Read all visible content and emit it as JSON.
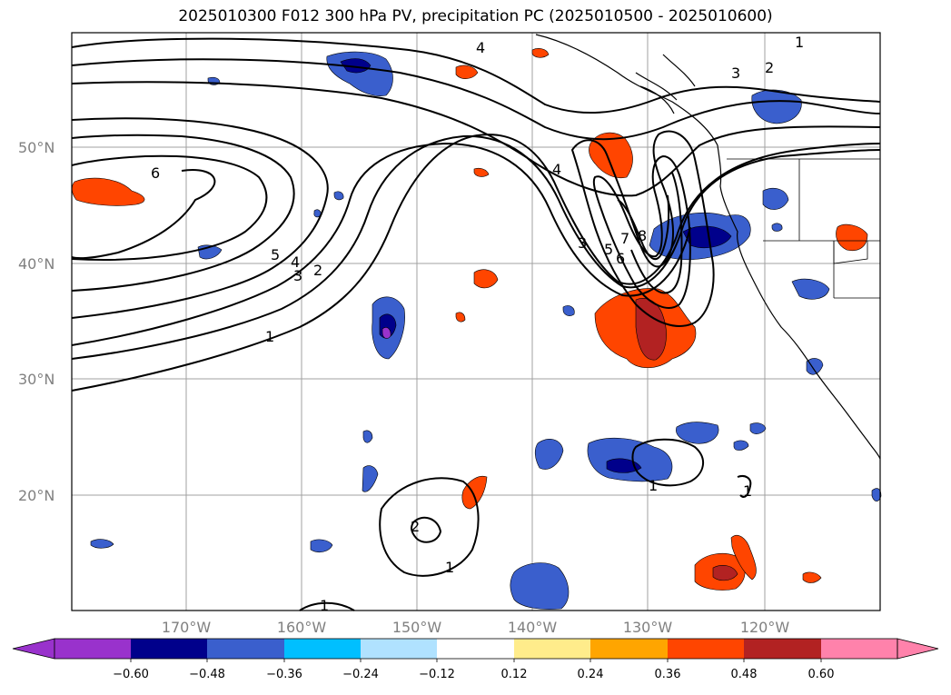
{
  "title": "2025010300 F012 300 hPa PV, precipitation PC (2025010500 - 2025010600)",
  "lat_labels": [
    "50°N",
    "40°N",
    "30°N",
    "20°N"
  ],
  "lon_labels": [
    "170°W",
    "160°W",
    "150°W",
    "140°W",
    "130°W",
    "120°W"
  ],
  "contour_labels": [
    "1",
    "2",
    "3",
    "4",
    "5",
    "6",
    "7",
    "8"
  ],
  "colorbar": {
    "ticks": [
      "−0.60",
      "−0.48",
      "−0.36",
      "−0.24",
      "−0.12",
      "0.12",
      "0.24",
      "0.36",
      "0.48",
      "0.60"
    ],
    "colors": [
      "#9932cc",
      "#00008b",
      "#3a5fcd",
      "#00bfff",
      "#b0e2ff",
      "#ffffff",
      "#ffec8b",
      "#ffa500",
      "#ff4500",
      "#b22222",
      "#ff82ab"
    ]
  },
  "colors": {
    "neg_strong": "#00008b",
    "neg_mid": "#3a5fcd",
    "neg_light": "#00bfff",
    "pos_light": "#ffec8b",
    "pos_mid": "#ff4500",
    "pos_strong": "#b22222",
    "grid": "#a0a0a0"
  }
}
